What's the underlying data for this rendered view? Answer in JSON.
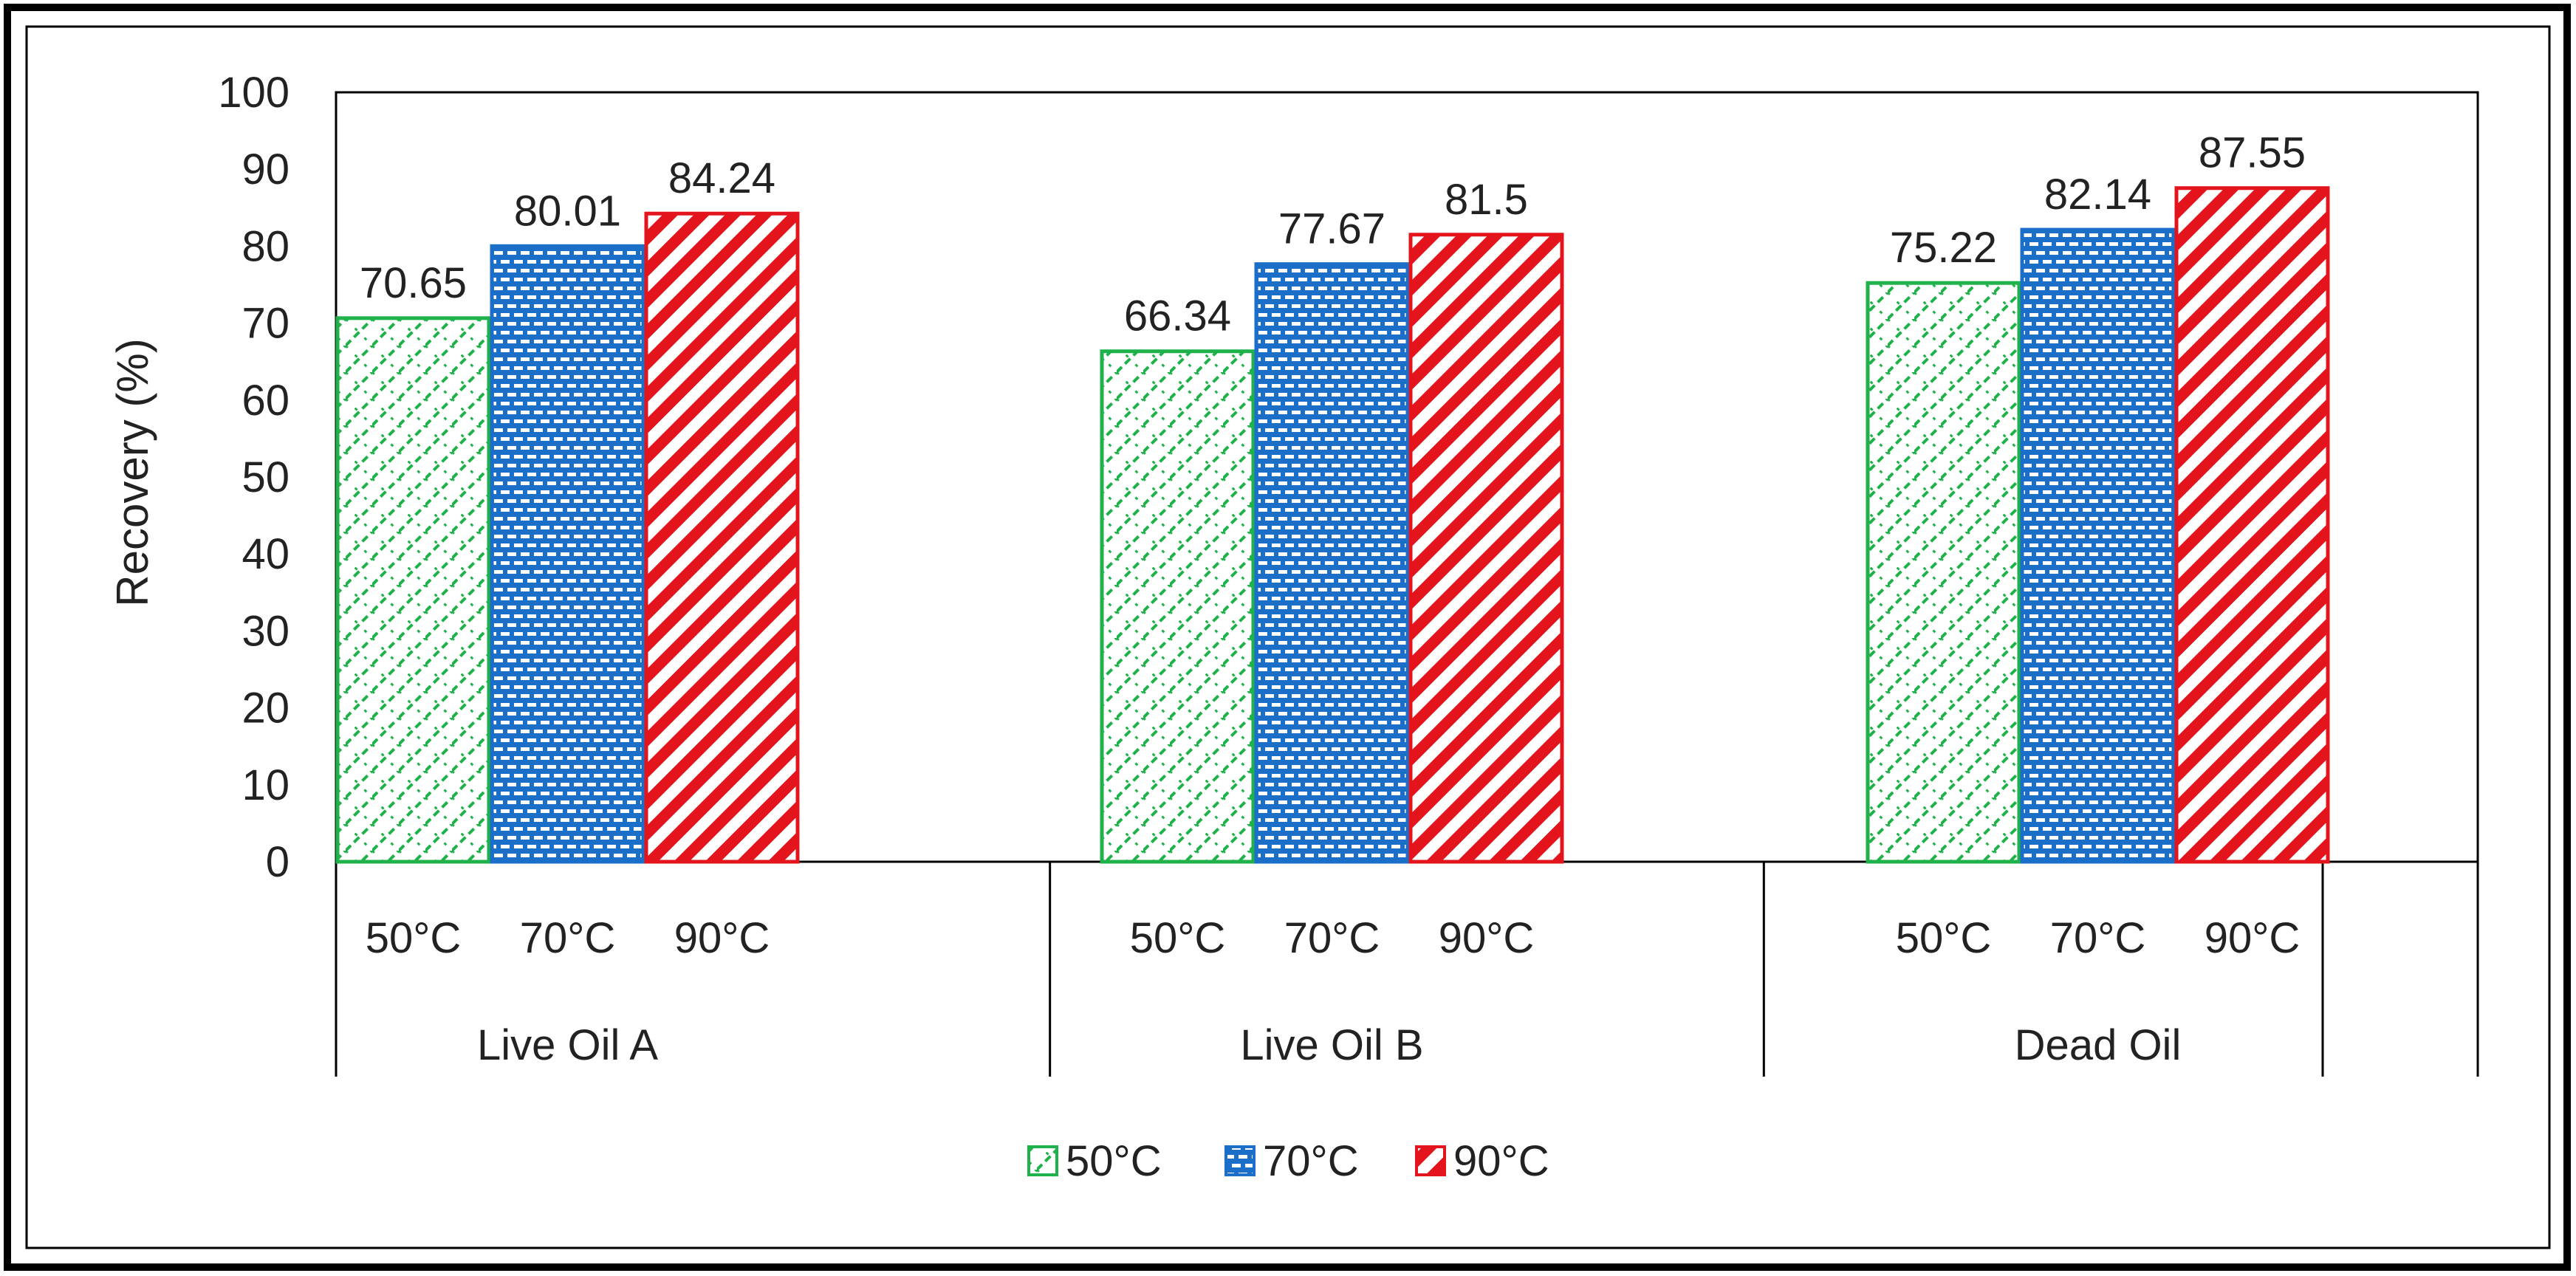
{
  "chart_data": {
    "type": "bar",
    "title": "",
    "ylabel": "Recovery (%)",
    "xlabel": "",
    "ylim": [
      0,
      100
    ],
    "yticks": [
      0,
      10,
      20,
      30,
      40,
      50,
      60,
      70,
      80,
      90,
      100
    ],
    "groups": [
      "Live Oil A",
      "Live Oil B",
      "Dead Oil"
    ],
    "categories": [
      "50°C",
      "70°C",
      "90°C"
    ],
    "series": [
      {
        "name": "50°C",
        "values": [
          70.65,
          66.34,
          75.22
        ],
        "color": "#1fb24a",
        "pattern": "zigzag-cross"
      },
      {
        "name": "70°C",
        "values": [
          80.01,
          77.67,
          82.14
        ],
        "color": "#1b6fc8",
        "pattern": "brick"
      },
      {
        "name": "90°C",
        "values": [
          84.24,
          81.5,
          87.55
        ],
        "color": "#e3141c",
        "pattern": "diagonal-stripes"
      }
    ],
    "data_labels": [
      [
        "70.65",
        "80.01",
        "84.24"
      ],
      [
        "66.34",
        "77.67",
        "81.5"
      ],
      [
        "75.22",
        "82.14",
        "87.55"
      ]
    ],
    "legend": {
      "position": "bottom",
      "entries": [
        "50°C",
        "70°C",
        "90°C"
      ]
    },
    "grid": false
  }
}
